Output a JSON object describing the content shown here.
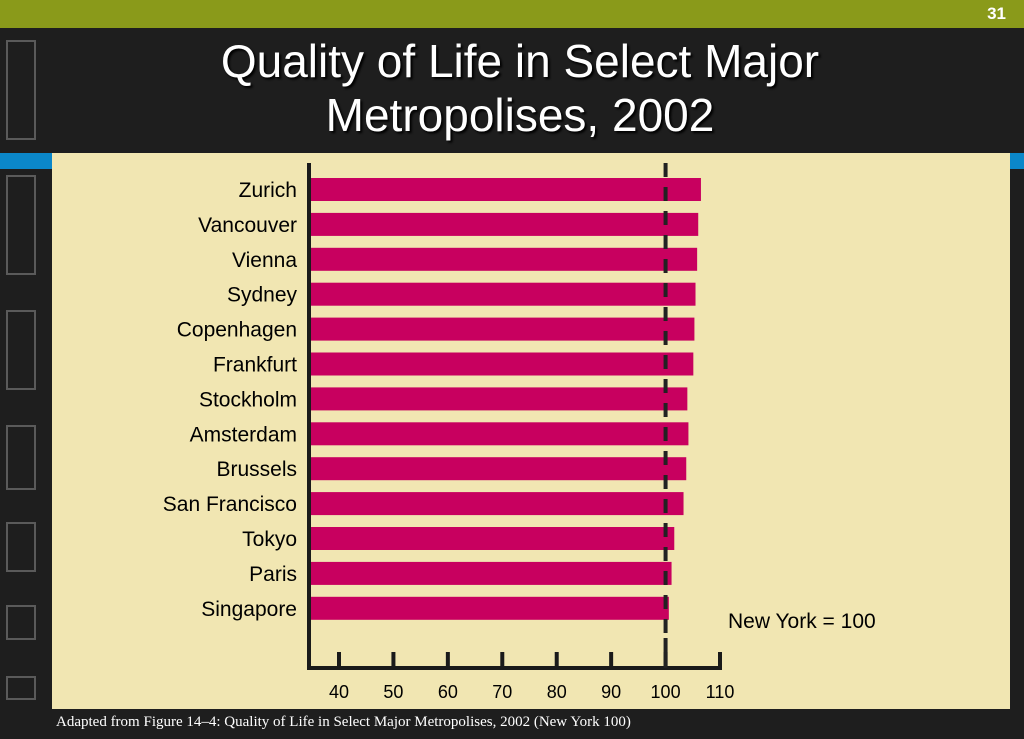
{
  "slide_number": "31",
  "title_lines": [
    "Quality of Life in Select Major",
    "Metropolises, 2002"
  ],
  "caption": "Adapted from Figure 14–4: Quality of Life in Select Major Metropolises, 2002 (New York  100)",
  "annotation": "New York = 100",
  "colors": {
    "bar": "#c8005f",
    "panel": "#f1e6b2",
    "topbar": "#8a9a1a",
    "accent_blue": "#0b87c9"
  },
  "chart_data": {
    "type": "bar",
    "orientation": "horizontal",
    "categories": [
      "Zurich",
      "Vancouver",
      "Vienna",
      "Sydney",
      "Copenhagen",
      "Frankfurt",
      "Stockholm",
      "Amsterdam",
      "Brussels",
      "San Francisco",
      "Tokyo",
      "Paris",
      "Singapore"
    ],
    "values": [
      106.5,
      106,
      105.8,
      105.5,
      105.3,
      105.1,
      104,
      104.2,
      103.8,
      103.3,
      101.6,
      101.1,
      100.6
    ],
    "xticks": [
      40,
      50,
      60,
      70,
      80,
      90,
      100,
      110
    ],
    "xlim": [
      35,
      110
    ],
    "reference_line": 100,
    "grid": false
  }
}
